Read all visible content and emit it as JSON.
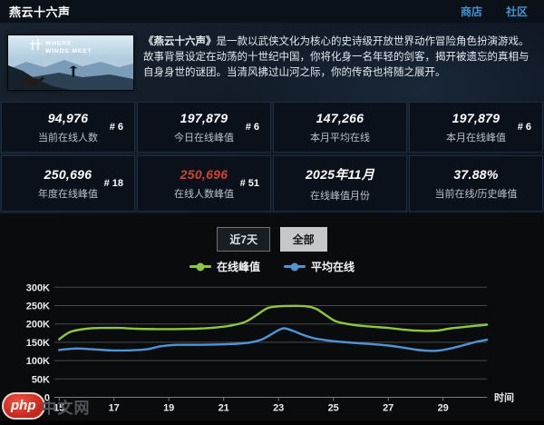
{
  "header": {
    "title": "燕云十六声",
    "store_link": "商店",
    "community_link": "社区"
  },
  "game": {
    "logo": {
      "line1": "WHERE",
      "line2": "WINDS MEET"
    },
    "desc_title": "《燕云十六声》",
    "desc_body": "是一款以武侠文化为核心的史诗级开放世界动作冒险角色扮演游戏。 故事背景设定在动荡的十世纪中国，你将化身一名年轻的剑客，揭开被遗忘的真相与自身身世的谜团。当清风拂过山河之际，你的传奇也将随之展开。"
  },
  "stats": [
    {
      "value": "94,976",
      "label": "当前在线人数",
      "rank": "# 6",
      "color": "white"
    },
    {
      "value": "197,879",
      "label": "今日在线峰值",
      "rank": "# 6",
      "color": "white"
    },
    {
      "value": "147,266",
      "label": "本月平均在线",
      "rank": "",
      "color": "white"
    },
    {
      "value": "197,879",
      "label": "本月在线峰值",
      "rank": "# 6",
      "color": "white"
    },
    {
      "value": "250,696",
      "label": "年度在线峰值",
      "rank": "# 18",
      "color": "white"
    },
    {
      "value": "250,696",
      "label": "在线人数峰值",
      "rank": "# 51",
      "color": "red"
    },
    {
      "value": "2025年11月",
      "label": "在线峰值月份",
      "rank": "",
      "color": "white"
    },
    {
      "value": "37.88%",
      "label": "当前在线/历史峰值",
      "rank": "",
      "color": "white"
    }
  ],
  "controls": {
    "buttons": [
      {
        "label": "近7天",
        "active": false
      },
      {
        "label": "全部",
        "active": true
      }
    ]
  },
  "legend": [
    {
      "label": "在线峰值",
      "color": "#8dc63f"
    },
    {
      "label": "平均在线",
      "color": "#4f94d4"
    }
  ],
  "chart_data": {
    "type": "line",
    "title": "",
    "xlabel": "时间",
    "ylabel": "",
    "x_ticks": [
      15,
      17,
      19,
      21,
      23,
      25,
      27,
      29
    ],
    "y_tick_labels": [
      "0",
      "50K",
      "100K",
      "150K",
      "200K",
      "250K",
      "300K"
    ],
    "xlim": [
      15,
      30.6
    ],
    "ylim": [
      0,
      300000
    ],
    "values_unit": "thousands",
    "grid": true,
    "legend_position": "top-center",
    "series": [
      {
        "name": "在线峰值",
        "color": "#8dc63f",
        "points": [
          [
            15,
            158
          ],
          [
            15.4,
            178
          ],
          [
            16,
            187
          ],
          [
            16.6,
            189
          ],
          [
            17.2,
            189
          ],
          [
            17.8,
            187
          ],
          [
            18.5,
            186
          ],
          [
            19.2,
            186
          ],
          [
            20,
            187
          ],
          [
            20.7,
            190
          ],
          [
            21.3,
            196
          ],
          [
            21.8,
            206
          ],
          [
            22.2,
            224
          ],
          [
            22.6,
            243
          ],
          [
            23,
            248
          ],
          [
            23.4,
            249
          ],
          [
            23.8,
            249
          ],
          [
            24.1,
            247
          ],
          [
            24.4,
            240
          ],
          [
            24.8,
            220
          ],
          [
            25.1,
            207
          ],
          [
            25.5,
            200
          ],
          [
            26,
            195
          ],
          [
            26.5,
            192
          ],
          [
            27,
            189
          ],
          [
            27.5,
            185
          ],
          [
            28,
            182
          ],
          [
            28.4,
            181
          ],
          [
            28.8,
            182
          ],
          [
            29.3,
            188
          ],
          [
            29.8,
            192
          ],
          [
            30.2,
            195
          ],
          [
            30.6,
            198
          ]
        ]
      },
      {
        "name": "平均在线",
        "color": "#4f94d4",
        "points": [
          [
            15,
            129
          ],
          [
            15.6,
            133
          ],
          [
            16.2,
            131
          ],
          [
            16.9,
            128
          ],
          [
            17.6,
            128
          ],
          [
            18.2,
            131
          ],
          [
            18.7,
            139
          ],
          [
            19.3,
            143
          ],
          [
            20,
            143
          ],
          [
            20.8,
            144
          ],
          [
            21.5,
            146
          ],
          [
            22,
            150
          ],
          [
            22.4,
            158
          ],
          [
            22.7,
            170
          ],
          [
            23,
            183
          ],
          [
            23.2,
            188
          ],
          [
            23.5,
            182
          ],
          [
            23.9,
            170
          ],
          [
            24.3,
            161
          ],
          [
            24.8,
            155
          ],
          [
            25.3,
            151
          ],
          [
            25.8,
            148
          ],
          [
            26.4,
            145
          ],
          [
            27,
            141
          ],
          [
            27.5,
            136
          ],
          [
            28,
            130
          ],
          [
            28.4,
            127
          ],
          [
            28.8,
            127
          ],
          [
            29.2,
            132
          ],
          [
            29.7,
            141
          ],
          [
            30.2,
            151
          ],
          [
            30.6,
            157
          ]
        ]
      }
    ]
  },
  "watermark": {
    "badge": "php",
    "text": "中文网"
  },
  "colors": {
    "link_blue": "#3e93d0",
    "value_red": "#d0432e",
    "line_green": "#8dc63f",
    "line_blue": "#4f94d4"
  }
}
